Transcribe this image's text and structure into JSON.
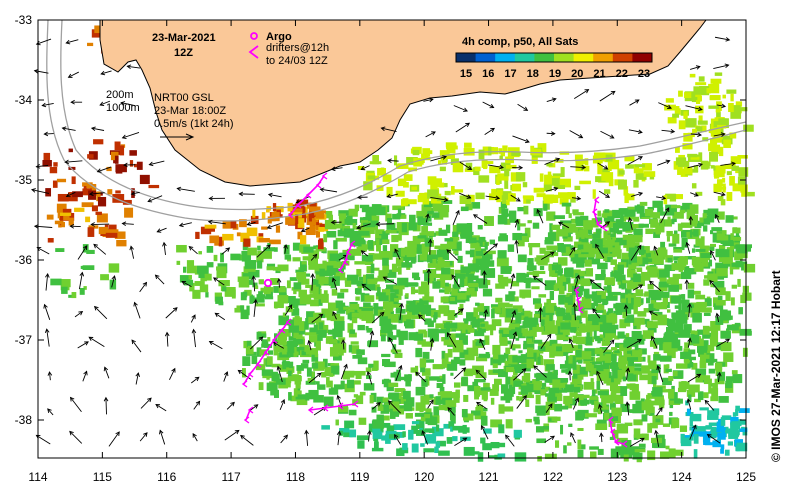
{
  "map": {
    "title_date": "23-Mar-2021",
    "title_time": "12Z",
    "legend": {
      "argo_label": "Argo",
      "drifters_label": "drifters@12h",
      "drifters_label2": "to 24/03 12Z",
      "argo_symbol": "ring-marker",
      "drifter_symbol": "chevron-magenta"
    },
    "contours": {
      "c200": "200m",
      "c1000": "1000m"
    },
    "info": {
      "line1": "NRT00 GSL",
      "line2": "23-Mar 18:00Z",
      "line3": "0.5m/s (1kt 24h)"
    },
    "colorbar": {
      "title": "4h comp, p50, All Sats",
      "ticks": [
        "15",
        "16",
        "17",
        "18",
        "19",
        "20",
        "21",
        "22",
        "23"
      ],
      "colors": [
        "#08306b",
        "#0060d0",
        "#00b0f0",
        "#20c8a0",
        "#40c040",
        "#a0e020",
        "#f0f000",
        "#f0a000",
        "#d04000",
        "#900000"
      ]
    },
    "x_ticks": [
      "114",
      "115",
      "116",
      "117",
      "118",
      "119",
      "120",
      "121",
      "122",
      "123",
      "124",
      "125"
    ],
    "y_ticks": [
      "-33",
      "-34",
      "-35",
      "-36",
      "-37",
      "-38"
    ],
    "credit": "© IMOS 27-Mar-2021 12:17 Hobart",
    "colors": {
      "land": "#fac898",
      "sea": "#ffffff",
      "drifter": "#ff00ff",
      "contour": "#a0a0a0"
    }
  }
}
